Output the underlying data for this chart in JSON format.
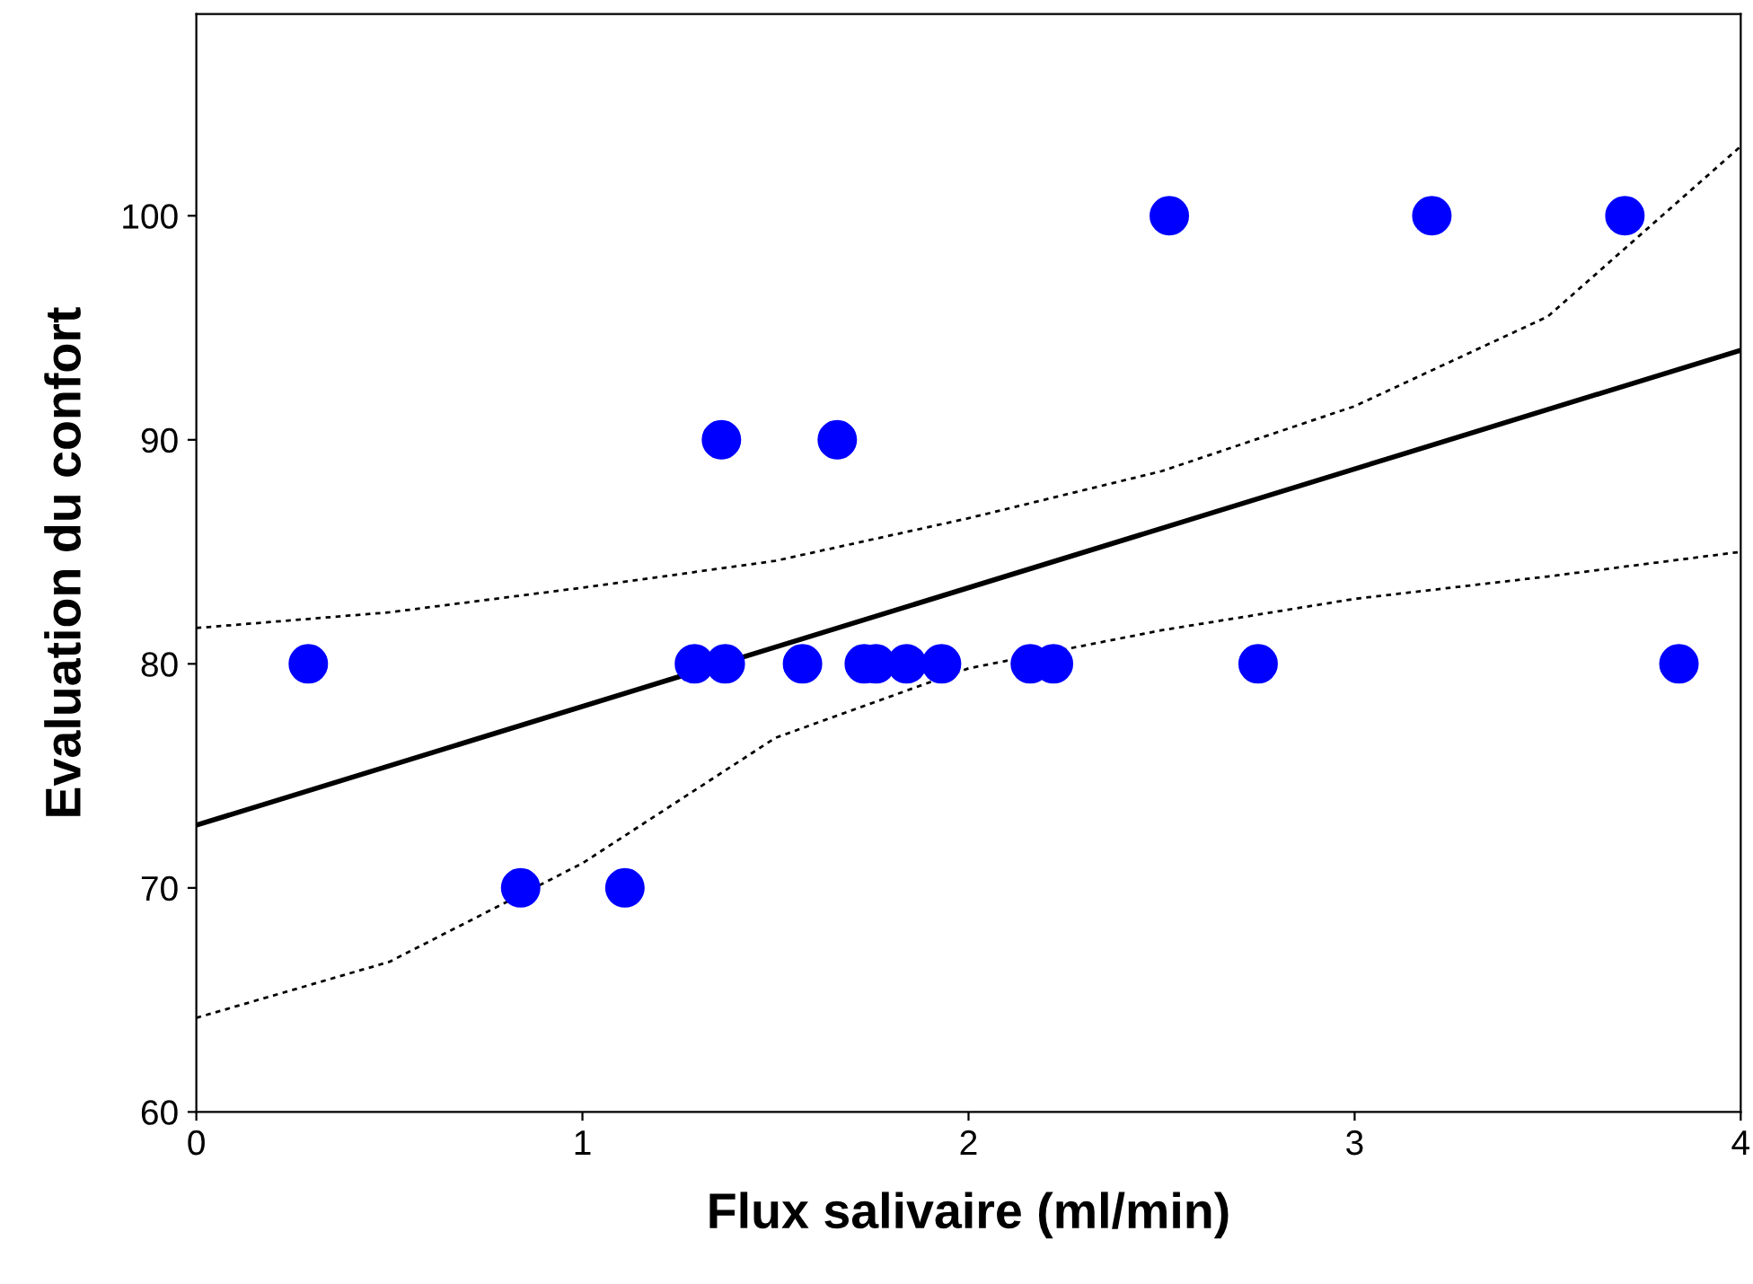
{
  "chart_data": {
    "type": "scatter",
    "xlabel": "Flux salivaire (ml/min)",
    "ylabel": "Evaluation du confort",
    "xlim": [
      0,
      4
    ],
    "ylim": [
      60,
      109
    ],
    "xticks": [
      0,
      1,
      2,
      3,
      4
    ],
    "yticks": [
      60,
      70,
      80,
      90,
      100
    ],
    "grid": false,
    "legend": false,
    "series": [
      {
        "color": "#0000ff",
        "marker": "circle",
        "x": [
          0.29,
          0.84,
          1.11,
          1.29,
          1.36,
          1.37,
          1.57,
          1.66,
          1.73,
          1.76,
          1.84,
          1.93,
          2.16,
          2.22,
          2.52,
          2.75,
          3.2,
          3.7,
          3.84
        ],
        "values": [
          80,
          70,
          70,
          80,
          90,
          80,
          80,
          90,
          80,
          80,
          80,
          80,
          80,
          80,
          100,
          80,
          100,
          100,
          80
        ]
      },
      {
        "type": "line",
        "color": "#000000",
        "line_style": "solid",
        "marker": "none",
        "x": [
          0,
          4
        ],
        "values": [
          72.8,
          94.0
        ]
      },
      {
        "type": "line",
        "color": "#000000",
        "line_style": "dotted",
        "marker": "none",
        "x": [
          0,
          0.5,
          1,
          1.5,
          2,
          2.5,
          3,
          3.5,
          4
        ],
        "values": [
          81.6,
          82.3,
          83.4,
          84.6,
          86.5,
          88.6,
          91.5,
          95.5,
          103.1
        ]
      },
      {
        "type": "line",
        "color": "#000000",
        "line_style": "dotted",
        "marker": "none",
        "x": [
          0,
          0.5,
          1,
          1.5,
          2,
          2.5,
          3,
          3.5,
          4
        ],
        "values": [
          64.2,
          66.7,
          71.1,
          76.7,
          79.8,
          81.5,
          82.9,
          83.9,
          85.0
        ]
      }
    ]
  }
}
